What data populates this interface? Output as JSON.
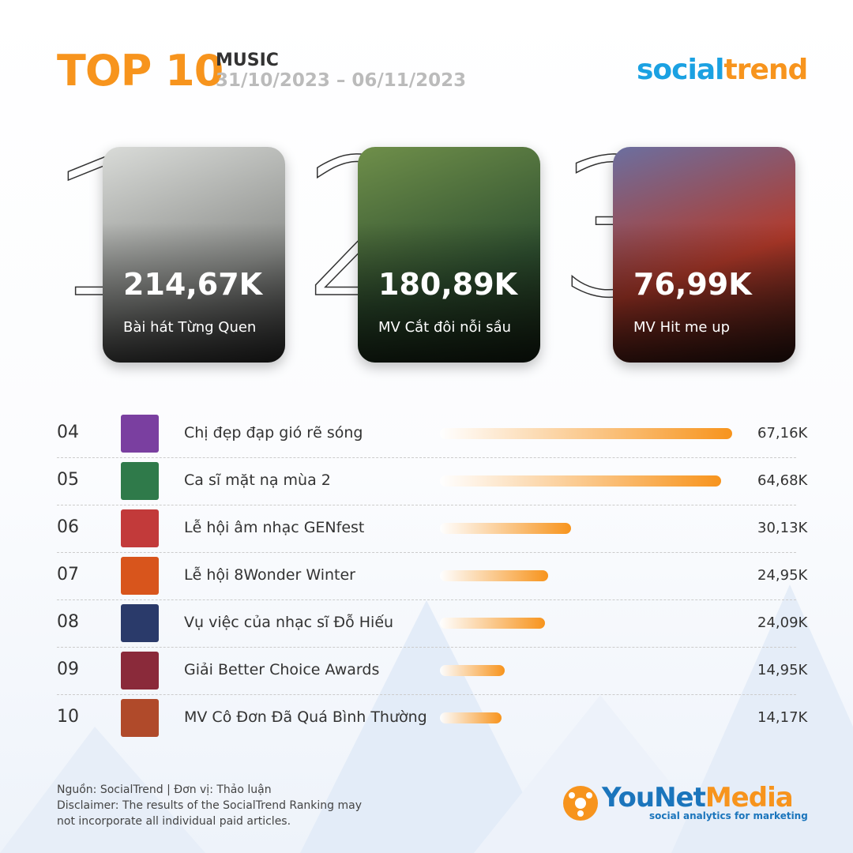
{
  "header": {
    "title": "TOP 10",
    "category": "MUSIC",
    "date_range": "31/10/2023 – 06/11/2023",
    "brand_left": "social",
    "brand_right": "trend"
  },
  "top3": [
    {
      "rank": "1",
      "value": 214.67,
      "value_label": "214,67K",
      "name": "Bài hát Từng Quen"
    },
    {
      "rank": "2",
      "value": 180.89,
      "value_label": "180,89K",
      "name": "MV Cắt đôi nỗi sầu"
    },
    {
      "rank": "3",
      "value": 76.99,
      "value_label": "76,99K",
      "name": "MV Hit me up"
    }
  ],
  "chart_data": {
    "type": "bar",
    "ranks": [
      "04",
      "05",
      "06",
      "07",
      "08",
      "09",
      "10"
    ],
    "categories": [
      "Chị đẹp đạp gió rẽ sóng",
      "Ca sĩ mặt nạ mùa 2",
      "Lễ hội âm nhạc GENfest",
      "Lễ hội 8Wonder Winter",
      "Vụ việc của nhạc sĩ Đỗ Hiếu",
      "Giải Better Choice Awards",
      "MV Cô Đơn Đã Quá Bình Thường"
    ],
    "values": [
      67.16,
      64.68,
      30.13,
      24.95,
      24.09,
      14.95,
      14.17
    ],
    "value_labels": [
      "67,16K",
      "64,68K",
      "30,13K",
      "24,95K",
      "24,09K",
      "14,95K",
      "14,17K"
    ],
    "color": "#f7941d"
  },
  "footer": {
    "source": "Nguồn: SocialTrend |  Đơn vị: Thảo luận",
    "disclaimer": "Disclaimer: The results of the SocialTrend Ranking may not incorporate all individual paid articles.",
    "logo_left": "YouNet",
    "logo_right": "Media",
    "tagline": "social analytics for marketing"
  }
}
